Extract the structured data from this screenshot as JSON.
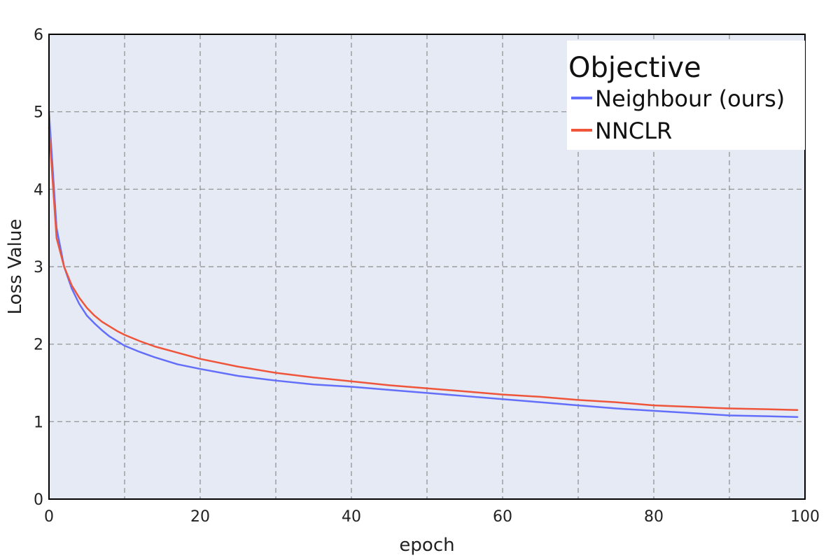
{
  "chart_data": {
    "type": "line",
    "title": "",
    "xlabel": "epoch",
    "ylabel": "Loss Value",
    "xlim": [
      0,
      100
    ],
    "ylim": [
      0,
      6
    ],
    "xticks": [
      0,
      20,
      40,
      60,
      80,
      100
    ],
    "yticks": [
      0,
      1,
      2,
      3,
      4,
      5,
      6
    ],
    "xgrid": [
      10,
      20,
      30,
      40,
      50,
      60,
      70,
      80,
      90
    ],
    "ygrid": [
      1,
      2,
      3,
      4,
      5
    ],
    "grid": true,
    "background_color": "#e5eaf4",
    "legend": {
      "title": "Objective",
      "placement": "top-right"
    },
    "series": [
      {
        "name": "Neighbour (ours)",
        "color": "#636efa",
        "x": [
          0,
          1,
          2,
          3,
          4,
          5,
          6,
          7,
          8,
          9,
          10,
          12,
          14,
          17,
          20,
          25,
          30,
          35,
          40,
          45,
          50,
          55,
          60,
          65,
          70,
          75,
          80,
          85,
          90,
          95,
          99
        ],
        "y": [
          5.0,
          3.5,
          3.0,
          2.72,
          2.52,
          2.37,
          2.27,
          2.18,
          2.1,
          2.04,
          1.98,
          1.9,
          1.83,
          1.74,
          1.68,
          1.59,
          1.53,
          1.48,
          1.45,
          1.41,
          1.37,
          1.33,
          1.29,
          1.25,
          1.21,
          1.17,
          1.14,
          1.11,
          1.08,
          1.07,
          1.06
        ]
      },
      {
        "name": "NNCLR",
        "color": "#ef553b",
        "x": [
          0,
          1,
          2,
          3,
          4,
          5,
          6,
          7,
          8,
          9,
          10,
          12,
          14,
          17,
          20,
          25,
          30,
          35,
          40,
          45,
          50,
          55,
          60,
          65,
          70,
          75,
          80,
          85,
          90,
          95,
          99
        ],
        "y": [
          4.8,
          3.37,
          3.0,
          2.76,
          2.6,
          2.47,
          2.37,
          2.29,
          2.23,
          2.17,
          2.12,
          2.04,
          1.97,
          1.89,
          1.81,
          1.71,
          1.63,
          1.57,
          1.52,
          1.47,
          1.43,
          1.39,
          1.35,
          1.32,
          1.28,
          1.25,
          1.21,
          1.19,
          1.17,
          1.16,
          1.15
        ]
      }
    ]
  }
}
